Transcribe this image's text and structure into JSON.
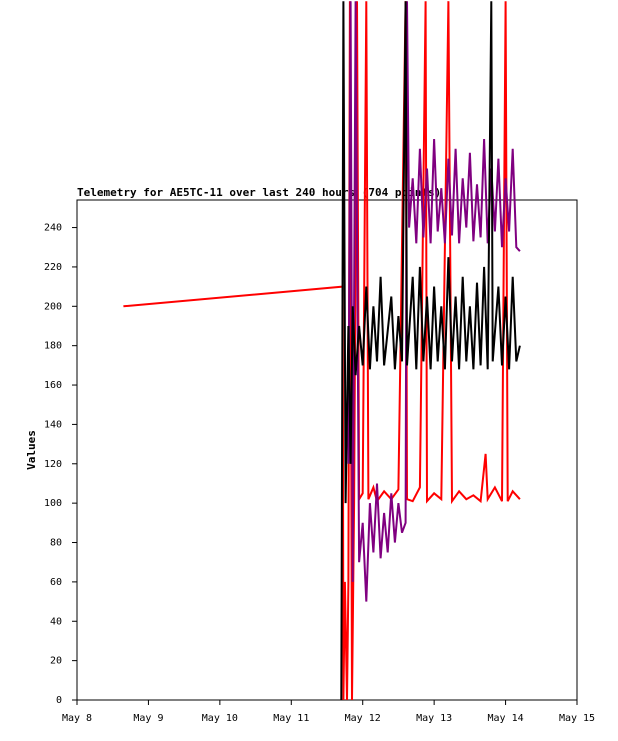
{
  "chart_data": {
    "type": "line",
    "title": "Telemetry for AE5TC-11 over last 240 hours (704 points)",
    "y_label": "Values",
    "xlim": [
      8,
      15
    ],
    "xticks": [
      {
        "value": 8,
        "label": "May 8"
      },
      {
        "value": 9,
        "label": "May 9"
      },
      {
        "value": 10,
        "label": "May 10"
      },
      {
        "value": 11,
        "label": "May 11"
      },
      {
        "value": 12,
        "label": "May 12"
      },
      {
        "value": 13,
        "label": "May 13"
      },
      {
        "value": 14,
        "label": "May 14"
      },
      {
        "value": 15,
        "label": "May 15"
      }
    ],
    "ylim": [
      0,
      254
    ],
    "yticks": [
      0,
      20,
      40,
      60,
      80,
      100,
      120,
      140,
      160,
      180,
      200,
      220,
      240
    ],
    "grid": false,
    "series": [
      {
        "color": "#ff0000",
        "x": [
          8.65,
          11.72,
          11.73,
          11.75,
          11.78,
          11.8,
          11.82,
          11.85,
          11.88,
          11.92,
          11.95,
          12.0,
          12.05,
          12.08,
          12.15,
          12.2,
          12.3,
          12.4,
          12.5,
          12.6,
          12.62,
          12.7,
          12.8,
          12.88,
          12.9,
          13.0,
          13.1,
          13.2,
          13.25,
          13.35,
          13.45,
          13.55,
          13.65,
          13.72,
          13.75,
          13.85,
          13.95,
          14.0,
          14.03,
          14.1,
          14.2
        ],
        "values": [
          200,
          210,
          0,
          60,
          0,
          60,
          355,
          0,
          100,
          355,
          102,
          105,
          355,
          102,
          108,
          101,
          106,
          102,
          107,
          355,
          102,
          101,
          108,
          355,
          101,
          105,
          102,
          355,
          101,
          106,
          102,
          104,
          101,
          125,
          102,
          108,
          101,
          355,
          101,
          106,
          102
        ]
      },
      {
        "color": "#800080",
        "x": [
          11.8,
          11.83,
          11.86,
          11.9,
          11.95,
          12.0,
          12.05,
          12.1,
          12.15,
          12.2,
          12.25,
          12.3,
          12.35,
          12.4,
          12.45,
          12.5,
          12.55,
          12.6,
          12.62,
          12.65,
          12.7,
          12.75,
          12.8,
          12.85,
          12.9,
          12.95,
          13.0,
          13.05,
          13.1,
          13.15,
          13.2,
          13.25,
          13.3,
          13.35,
          13.4,
          13.45,
          13.5,
          13.55,
          13.6,
          13.65,
          13.7,
          13.75,
          13.8,
          13.85,
          13.9,
          13.95,
          14.0,
          14.05,
          14.1,
          14.15,
          14.2
        ],
        "values": [
          120,
          355,
          60,
          355,
          70,
          90,
          50,
          100,
          75,
          110,
          72,
          95,
          75,
          105,
          80,
          100,
          85,
          90,
          355,
          240,
          265,
          232,
          280,
          235,
          270,
          232,
          285,
          238,
          260,
          232,
          275,
          236,
          280,
          232,
          265,
          240,
          278,
          233,
          262,
          235,
          285,
          232,
          270,
          238,
          275,
          230,
          265,
          238,
          280,
          230,
          228
        ]
      },
      {
        "color": "#000000",
        "x": [
          11.7,
          11.73,
          11.76,
          11.8,
          11.83,
          11.86,
          11.9,
          11.95,
          12.0,
          12.05,
          12.1,
          12.15,
          12.2,
          12.25,
          12.3,
          12.4,
          12.45,
          12.5,
          12.55,
          12.6,
          12.62,
          12.7,
          12.75,
          12.8,
          12.85,
          12.9,
          12.95,
          13.0,
          13.05,
          13.1,
          13.15,
          13.2,
          13.25,
          13.3,
          13.35,
          13.4,
          13.45,
          13.5,
          13.55,
          13.6,
          13.65,
          13.7,
          13.75,
          13.8,
          13.82,
          13.9,
          13.95,
          14.0,
          14.05,
          14.1,
          14.15,
          14.2
        ],
        "values": [
          0,
          355,
          100,
          190,
          120,
          200,
          165,
          190,
          170,
          210,
          168,
          200,
          172,
          215,
          170,
          205,
          168,
          195,
          172,
          355,
          170,
          215,
          168,
          220,
          172,
          205,
          168,
          210,
          172,
          200,
          168,
          225,
          172,
          205,
          168,
          215,
          172,
          200,
          168,
          212,
          170,
          220,
          168,
          355,
          172,
          210,
          170,
          205,
          168,
          215,
          172,
          180
        ]
      }
    ]
  }
}
